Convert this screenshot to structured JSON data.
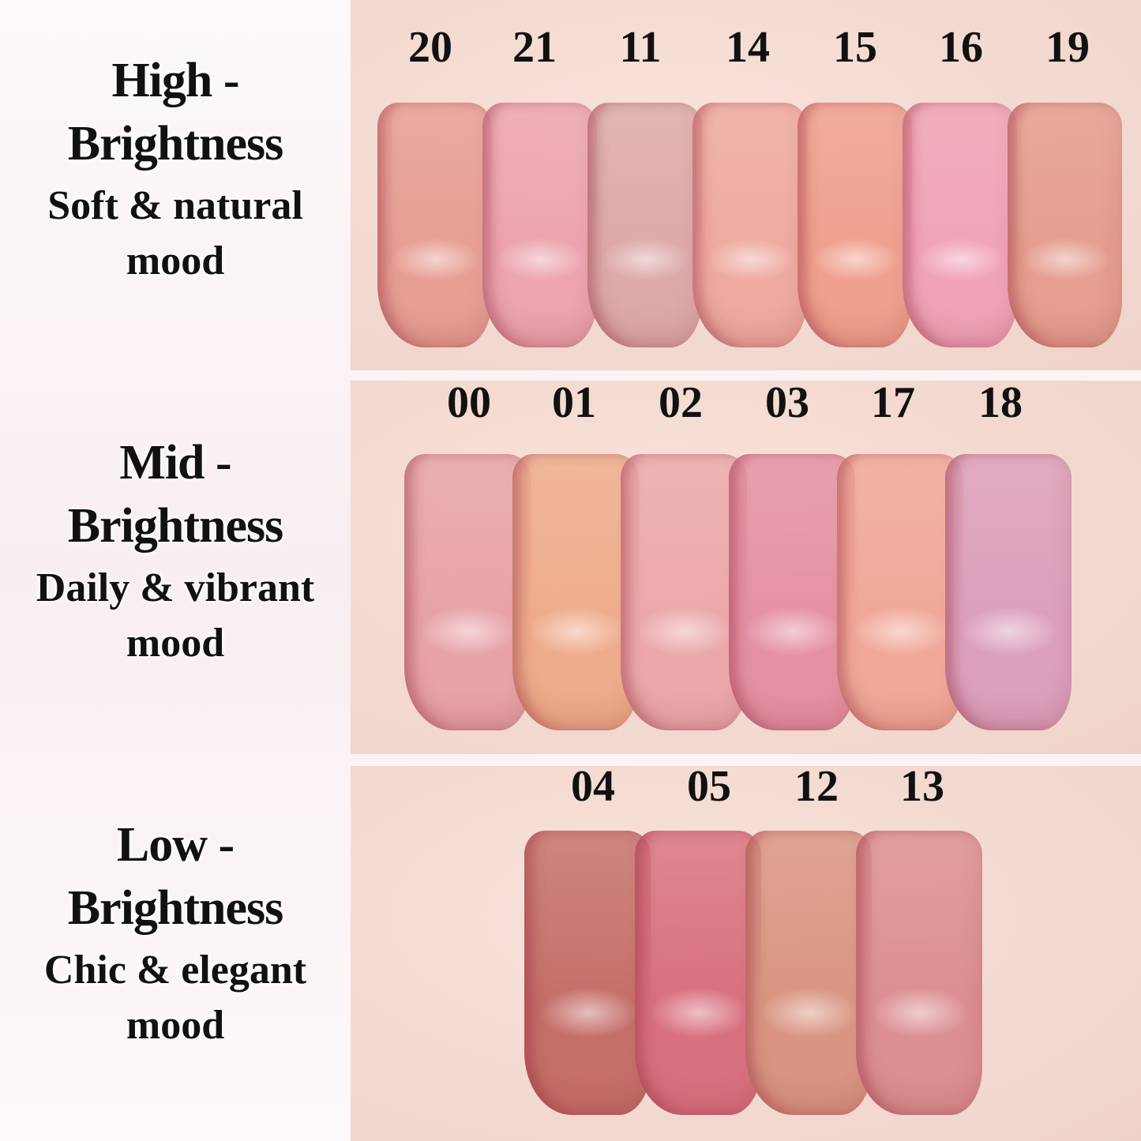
{
  "groups": [
    {
      "title_line1": "High -",
      "title_line2": "Brightness",
      "sub_line1": "Soft & natural",
      "sub_line2": "mood",
      "shades": [
        {
          "code": "20",
          "color": "#e79f94"
        },
        {
          "code": "21",
          "color": "#eca4ae"
        },
        {
          "code": "11",
          "color": "#dcaaa9"
        },
        {
          "code": "14",
          "color": "#eeaaa0"
        },
        {
          "code": "15",
          "color": "#f0a08e"
        },
        {
          "code": "16",
          "color": "#f0a3b8"
        },
        {
          "code": "19",
          "color": "#e59e90"
        }
      ]
    },
    {
      "title_line1": "Mid -",
      "title_line2": "Brightness",
      "sub_line1": "Daily & vibrant",
      "sub_line2": "mood",
      "shades": [
        {
          "code": "00",
          "color": "#e7a3a8"
        },
        {
          "code": "01",
          "color": "#eeac8c"
        },
        {
          "code": "02",
          "color": "#eba8aa"
        },
        {
          "code": "03",
          "color": "#e591a4"
        },
        {
          "code": "17",
          "color": "#f0a898"
        },
        {
          "code": "18",
          "color": "#dca0bd"
        }
      ]
    },
    {
      "title_line1": "Low -",
      "title_line2": "Brightness",
      "sub_line1": "Chic & elegant",
      "sub_line2": "mood",
      "shades": [
        {
          "code": "04",
          "color": "#c56f6a"
        },
        {
          "code": "05",
          "color": "#d8717f"
        },
        {
          "code": "12",
          "color": "#d99582"
        },
        {
          "code": "13",
          "color": "#dc8f92"
        }
      ]
    }
  ]
}
